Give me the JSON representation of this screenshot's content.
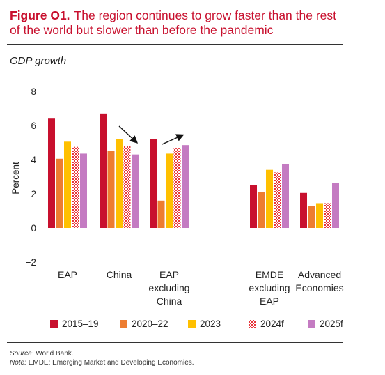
{
  "figure": {
    "label": "Figure O1.",
    "title": "The region continues to grow faster than the rest of the world but slower than before the pandemic",
    "subtitle": "GDP growth"
  },
  "chart_data": {
    "type": "bar",
    "ylabel": "Percent",
    "ylim": [
      -2,
      8
    ],
    "yticks": [
      "8",
      "6",
      "4",
      "2",
      "0",
      "−2"
    ],
    "categories": [
      [
        "EAP"
      ],
      [
        "China"
      ],
      [
        "EAP",
        "excluding",
        "China"
      ],
      [
        "EMDE",
        "excluding",
        "EAP"
      ],
      [
        "Advanced",
        "Economies"
      ]
    ],
    "series": [
      {
        "name": "2015–19",
        "color": "#c8102e",
        "pattern": "solid",
        "values": [
          6.4,
          6.7,
          5.2,
          2.5,
          2.05
        ]
      },
      {
        "name": "2020–22",
        "color": "#ed7d31",
        "pattern": "solid",
        "values": [
          4.05,
          4.5,
          1.6,
          2.1,
          1.3
        ]
      },
      {
        "name": "2023",
        "color": "#ffc000",
        "pattern": "solid",
        "values": [
          5.05,
          5.2,
          4.35,
          3.4,
          1.45
        ]
      },
      {
        "name": "2024f",
        "color": "#e8363b",
        "pattern": "checker",
        "values": [
          4.75,
          4.8,
          4.65,
          3.25,
          1.45
        ]
      },
      {
        "name": "2025f",
        "color": "#c47bc2",
        "pattern": "solid",
        "values": [
          4.35,
          4.3,
          4.85,
          3.75,
          2.65
        ]
      }
    ],
    "annotations": [
      "arrow-down over China",
      "arrow-up over EAP excluding China"
    ],
    "grid": false,
    "legend": "bottom"
  },
  "footer": {
    "source_label": "Source:",
    "source_text": "World Bank.",
    "note_label": "Note:",
    "note_text": "EMDE: Emerging Market and Developing Economies."
  }
}
